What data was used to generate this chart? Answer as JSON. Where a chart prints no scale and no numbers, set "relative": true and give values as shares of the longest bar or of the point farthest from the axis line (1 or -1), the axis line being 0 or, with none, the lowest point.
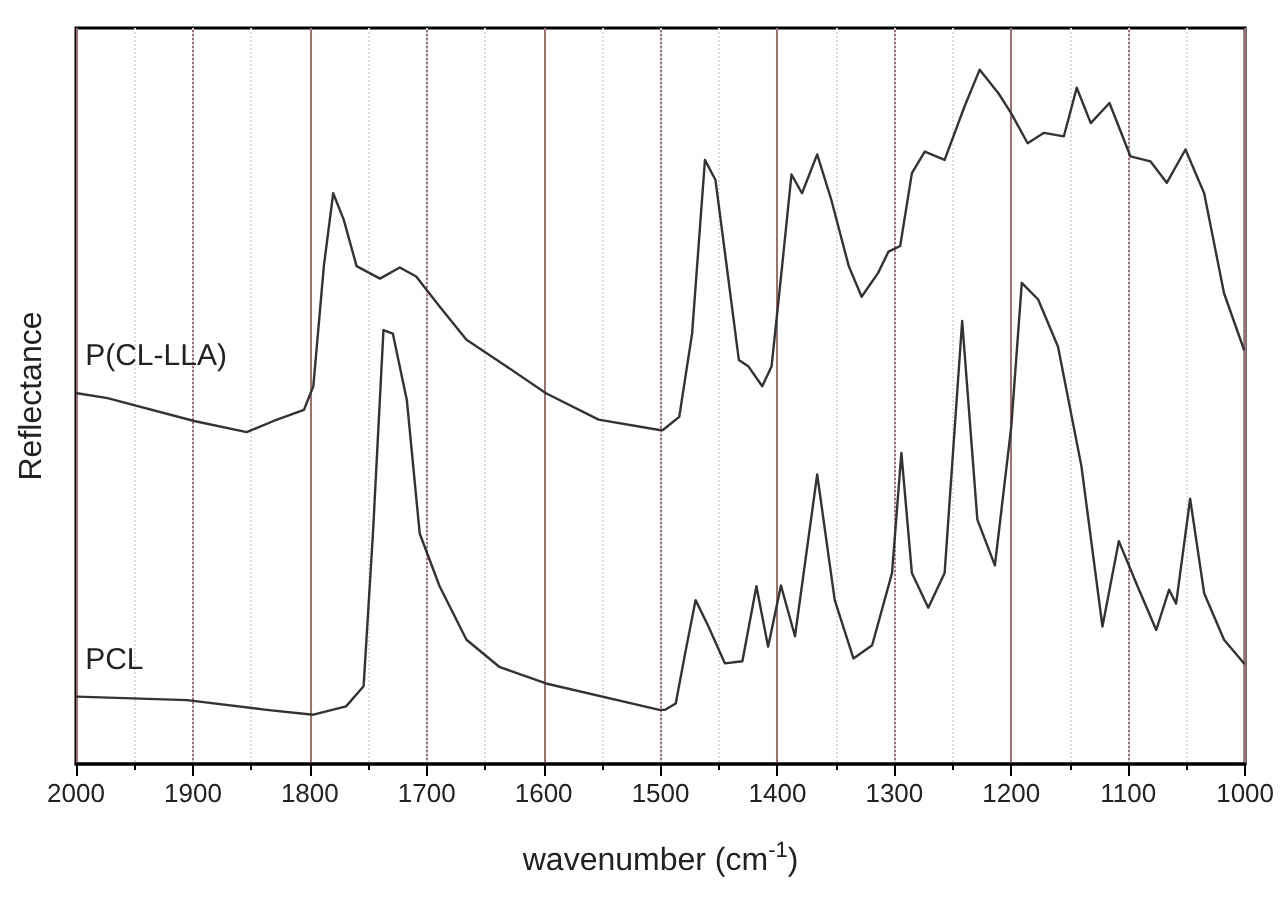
{
  "chart_data": {
    "type": "line",
    "xlabel": "wavenumber (cm$^{-1}$)",
    "ylabel": "Reflectance",
    "relative": true,
    "xlim": [
      2000,
      1000
    ],
    "xticks": [
      2000,
      1900,
      1800,
      1700,
      1600,
      1500,
      1400,
      1300,
      1200,
      1100,
      1000
    ],
    "grid": "x",
    "legend": false,
    "marker": "none",
    "line_style": "solid",
    "series": [
      {
        "name": "P(CL-LLA)",
        "color": "#333333",
        "x": [
          1999,
          1973,
          1899,
          1854,
          1831,
          1805,
          1797,
          1788,
          1780,
          1771,
          1760,
          1740,
          1723,
          1709,
          1689,
          1666,
          1632,
          1598,
          1553,
          1501,
          1498,
          1484,
          1473,
          1462,
          1453,
          1433,
          1425,
          1413,
          1405,
          1396,
          1388,
          1379,
          1366,
          1354,
          1339,
          1328,
          1314,
          1305,
          1295,
          1285,
          1274,
          1257,
          1240,
          1227,
          1211,
          1200,
          1186,
          1172,
          1155,
          1144,
          1132,
          1116,
          1098,
          1081,
          1067,
          1051,
          1035,
          1018,
          1001
        ],
        "values": [
          0.534,
          0.527,
          0.494,
          0.478,
          0.494,
          0.51,
          0.544,
          0.717,
          0.822,
          0.784,
          0.717,
          0.699,
          0.715,
          0.702,
          0.659,
          0.611,
          0.573,
          0.534,
          0.496,
          0.481,
          0.481,
          0.5,
          0.62,
          0.87,
          0.841,
          0.582,
          0.573,
          0.544,
          0.573,
          0.717,
          0.849,
          0.822,
          0.878,
          0.813,
          0.717,
          0.673,
          0.707,
          0.738,
          0.746,
          0.851,
          0.882,
          0.87,
          0.947,
          1.0,
          0.966,
          0.937,
          0.894,
          0.909,
          0.904,
          0.974,
          0.923,
          0.952,
          0.875,
          0.868,
          0.837,
          0.885,
          0.822,
          0.678,
          0.597
        ]
      },
      {
        "name": "PCL",
        "color": "#333333",
        "x": [
          1999,
          1905,
          1837,
          1797,
          1769,
          1754,
          1746,
          1737,
          1729,
          1717,
          1706,
          1689,
          1666,
          1638,
          1598,
          1501,
          1496,
          1487,
          1479,
          1470,
          1459,
          1445,
          1430,
          1418,
          1408,
          1397,
          1385,
          1366,
          1351,
          1335,
          1319,
          1302,
          1294,
          1285,
          1271,
          1257,
          1242,
          1229,
          1214,
          1200,
          1191,
          1177,
          1160,
          1140,
          1122,
          1108,
          1092,
          1076,
          1065,
          1059,
          1047,
          1035,
          1018,
          1001
        ],
        "values": [
          0.097,
          0.092,
          0.078,
          0.071,
          0.083,
          0.112,
          0.332,
          0.625,
          0.62,
          0.524,
          0.332,
          0.256,
          0.179,
          0.14,
          0.116,
          0.078,
          0.078,
          0.087,
          0.159,
          0.236,
          0.198,
          0.145,
          0.148,
          0.256,
          0.169,
          0.257,
          0.184,
          0.417,
          0.236,
          0.152,
          0.171,
          0.275,
          0.448,
          0.275,
          0.225,
          0.275,
          0.638,
          0.352,
          0.286,
          0.486,
          0.693,
          0.669,
          0.601,
          0.429,
          0.198,
          0.321,
          0.256,
          0.193,
          0.251,
          0.231,
          0.382,
          0.246,
          0.179,
          0.145
        ]
      }
    ]
  }
}
